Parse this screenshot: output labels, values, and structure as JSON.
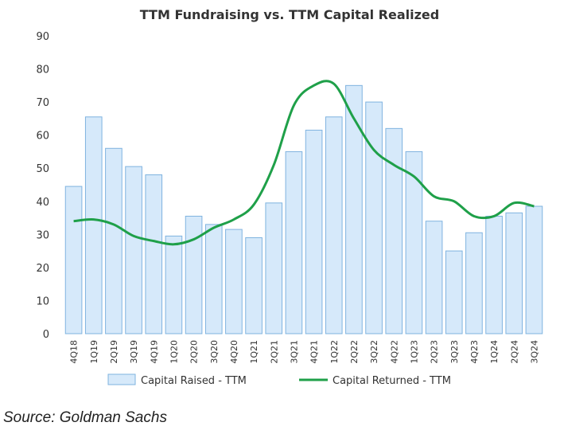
{
  "chart_data": {
    "type": "bar",
    "title": "TTM Fundraising vs. TTM Capital Realized",
    "xlabel": "",
    "ylabel": "",
    "ylim": [
      0,
      90
    ],
    "yticks": [
      0,
      10,
      20,
      30,
      40,
      50,
      60,
      70,
      80,
      90
    ],
    "grid": false,
    "legend": "bottom",
    "categories": [
      "4Q18",
      "1Q19",
      "2Q19",
      "3Q19",
      "4Q19",
      "1Q20",
      "2Q20",
      "3Q20",
      "4Q20",
      "1Q21",
      "2Q21",
      "3Q21",
      "4Q21",
      "1Q22",
      "2Q22",
      "3Q22",
      "4Q22",
      "1Q23",
      "2Q23",
      "3Q23",
      "4Q23",
      "1Q24",
      "2Q24",
      "3Q24"
    ],
    "series": [
      {
        "name": "Capital Raised - TTM",
        "type": "bar",
        "color": "#d6e9fa",
        "border": "#7fb3df",
        "values": [
          44.5,
          65.5,
          56,
          50.5,
          48,
          29.5,
          35.5,
          33,
          31.5,
          29,
          39.5,
          55,
          61.5,
          65.5,
          75,
          70,
          62,
          55,
          34,
          25,
          30.5,
          35.5,
          36.5,
          38.5
        ]
      },
      {
        "name": "Capital Returned - TTM",
        "type": "line",
        "color": "#1fa049",
        "values": [
          34,
          34.5,
          33,
          29.5,
          28,
          27,
          28.5,
          32,
          34.5,
          39,
          51,
          69,
          75,
          75.5,
          65,
          55.5,
          51,
          47.5,
          41.5,
          40,
          35.5,
          35.5,
          39.5,
          38.5
        ]
      }
    ]
  },
  "source": "Source: Goldman Sachs"
}
